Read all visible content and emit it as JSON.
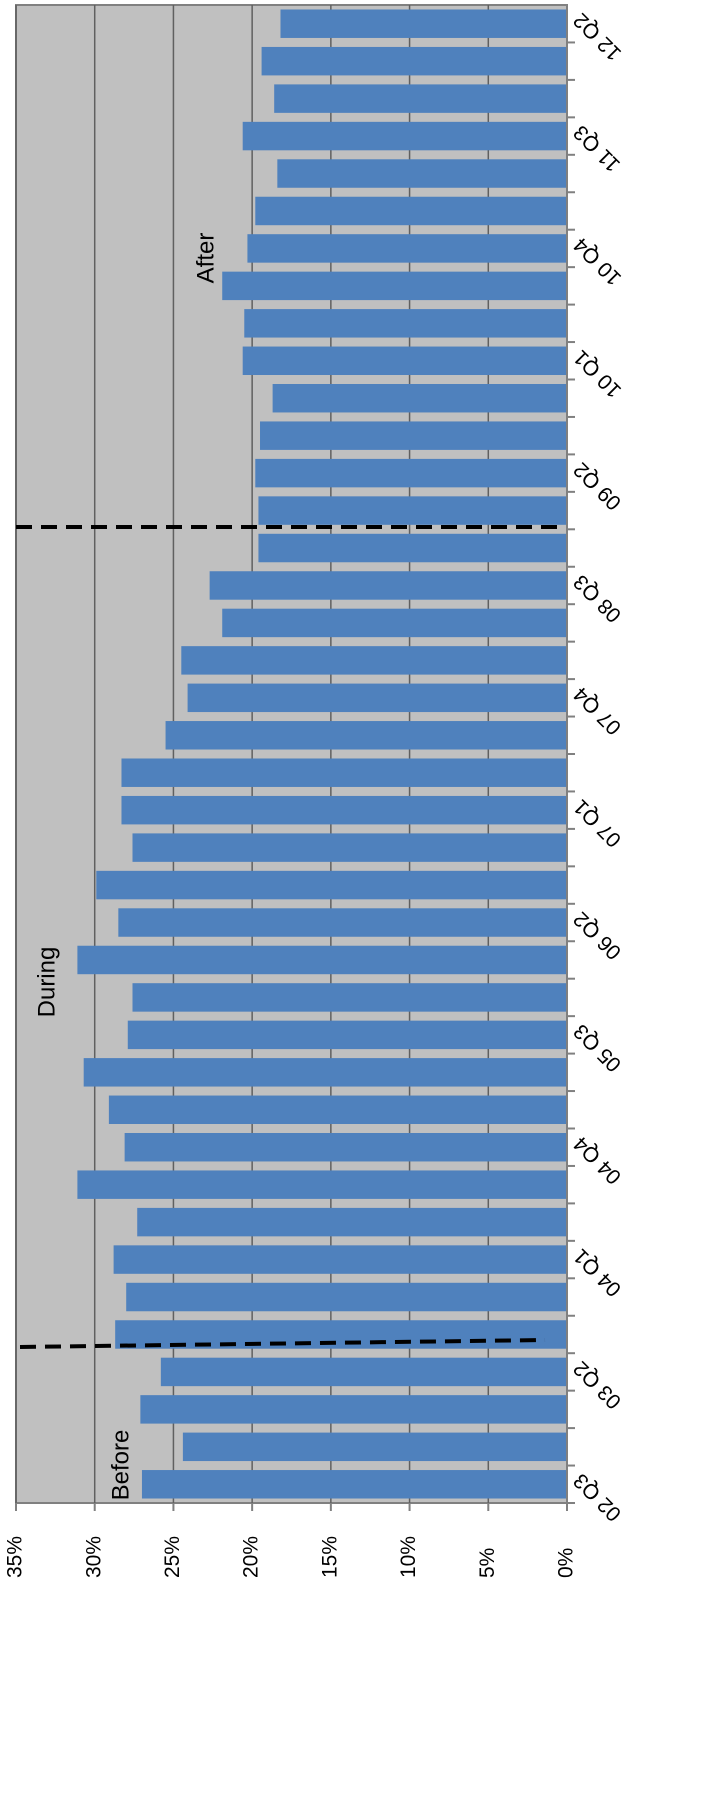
{
  "chart_data": {
    "type": "bar",
    "orientation": "horizontal-reversed",
    "categories": [
      "02 Q3",
      null,
      null,
      "03 Q2",
      null,
      null,
      "04 Q1",
      null,
      null,
      "04 Q4",
      null,
      null,
      "05 Q3",
      null,
      null,
      "06 Q2",
      null,
      null,
      "07 Q1",
      null,
      null,
      "07 Q4",
      null,
      null,
      "08 Q3",
      null,
      null,
      "09 Q2",
      null,
      null,
      "10 Q1",
      null,
      null,
      "10 Q4",
      null,
      null,
      "11 Q3",
      null,
      null,
      "12 Q2"
    ],
    "values": [
      27.0,
      24.4,
      27.1,
      25.8,
      28.7,
      28.0,
      28.8,
      27.3,
      31.1,
      28.1,
      29.1,
      30.7,
      27.9,
      27.6,
      31.1,
      28.5,
      29.9,
      27.6,
      28.3,
      28.3,
      25.5,
      24.1,
      24.5,
      21.9,
      22.7,
      19.6,
      19.6,
      19.8,
      19.5,
      18.7,
      20.6,
      20.5,
      21.9,
      20.3,
      19.8,
      18.4,
      20.6,
      18.6,
      19.4,
      18.2
    ],
    "color": "#4f81bd",
    "ylim": [
      0,
      35
    ],
    "yticks": [
      {
        "value": 0,
        "label": "0%"
      },
      {
        "value": 5,
        "label": "5%"
      },
      {
        "value": 10,
        "label": "10%"
      },
      {
        "value": 15,
        "label": "15%"
      },
      {
        "value": 20,
        "label": "20%"
      },
      {
        "value": 25,
        "label": "25%"
      },
      {
        "value": 30,
        "label": "30%"
      },
      {
        "value": 35,
        "label": "35%"
      }
    ],
    "grid": true,
    "annotations": [
      "Before",
      "During",
      "After"
    ]
  }
}
